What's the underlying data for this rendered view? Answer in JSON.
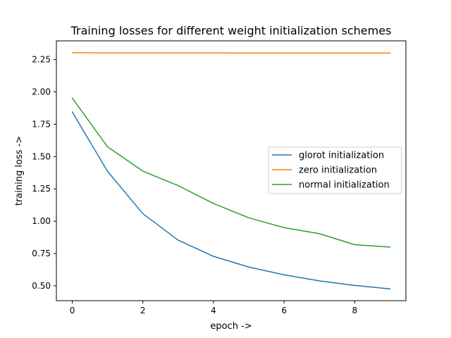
{
  "chart_data": {
    "type": "line",
    "title": "Training losses for different weight initialization schemes",
    "xlabel": "epoch ->",
    "ylabel": "training loss ->",
    "x": [
      0,
      1,
      2,
      3,
      4,
      5,
      6,
      7,
      8,
      9
    ],
    "xlim": [
      -0.45,
      9.45
    ],
    "ylim": [
      0.385,
      2.395
    ],
    "xticks": [
      0,
      2,
      4,
      6,
      8
    ],
    "yticks": [
      0.5,
      0.75,
      1.0,
      1.25,
      1.5,
      1.75,
      2.0,
      2.25
    ],
    "xtick_labels": [
      "0",
      "2",
      "4",
      "6",
      "8"
    ],
    "ytick_labels": [
      "0.50",
      "0.75",
      "1.00",
      "1.25",
      "1.50",
      "1.75",
      "2.00",
      "2.25"
    ],
    "grid": false,
    "legend_position": "center-right",
    "series": [
      {
        "name": "glorot initialization",
        "color": "#1f77b4",
        "values": [
          1.845,
          1.385,
          1.058,
          0.853,
          0.728,
          0.645,
          0.585,
          0.538,
          0.503,
          0.476
        ]
      },
      {
        "name": "zero initialization",
        "color": "#ff7f0e",
        "values": [
          2.303,
          2.302,
          2.302,
          2.302,
          2.302,
          2.301,
          2.301,
          2.301,
          2.301,
          2.301
        ]
      },
      {
        "name": "normal initialization",
        "color": "#2ca02c",
        "values": [
          1.952,
          1.575,
          1.387,
          1.275,
          1.137,
          1.026,
          0.95,
          0.903,
          0.818,
          0.8
        ]
      }
    ]
  }
}
